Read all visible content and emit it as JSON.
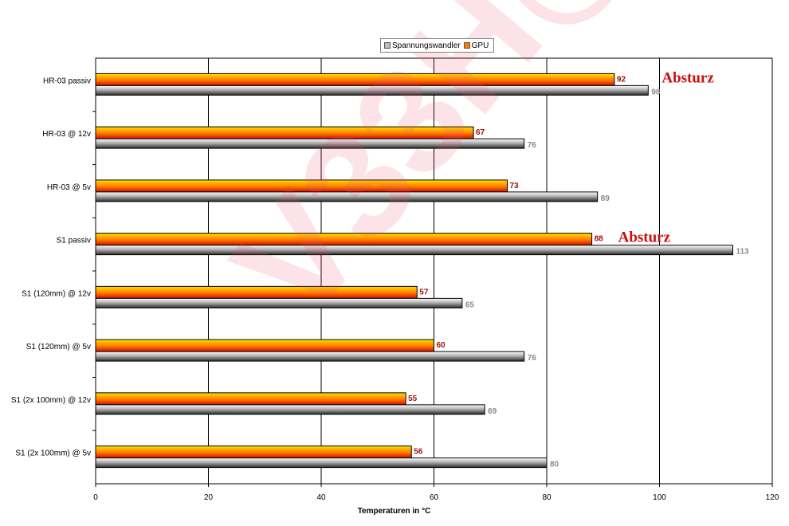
{
  "chart_data": {
    "type": "bar",
    "orientation": "horizontal",
    "categories": [
      "HR-03 passiv",
      "HR-03 @ 12v",
      "HR-03 @ 5v",
      "S1 passiv",
      "S1 (120mm) @ 12v",
      "S1 (120mm) @ 5v",
      "S1 (2x 100mm) @ 12v",
      "S1 (2x 100mm) @ 5v"
    ],
    "series": [
      {
        "name": "Spannungswandler",
        "values": [
          98,
          76,
          89,
          113,
          65,
          76,
          69,
          80
        ]
      },
      {
        "name": "GPU",
        "values": [
          92,
          67,
          73,
          88,
          57,
          60,
          55,
          56
        ]
      }
    ],
    "xlabel": "Temperaturen in °C",
    "ylabel": "",
    "xlim": [
      0,
      120
    ],
    "xticks": [
      "0",
      "20",
      "40",
      "60",
      "80",
      "100",
      "120"
    ],
    "grid": true,
    "legend_position": "top-center",
    "annotations": [
      {
        "category": "HR-03 passiv",
        "text": "Absturz"
      },
      {
        "category": "S1 passiv",
        "text": "Absturz"
      }
    ]
  },
  "colors": {
    "gpu": "#e8a000",
    "gpu_label": "#a01010",
    "spannungswandler": "#9a9a9a",
    "spannungswandler_label": "#8a8a8a",
    "annotation": "#c81010"
  },
  "watermark": "V33H@"
}
